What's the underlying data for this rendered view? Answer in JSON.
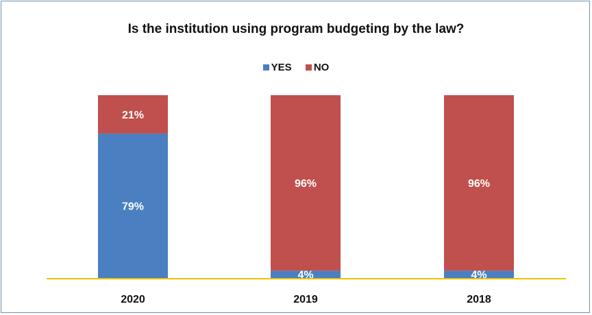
{
  "chart_data": {
    "type": "bar",
    "stacked": true,
    "percent": true,
    "title": "Is the institution using program budgeting by the law?",
    "categories": [
      "2020",
      "2019",
      "2018"
    ],
    "series": [
      {
        "name": "YES",
        "color": "#4a7fc1",
        "values": [
          79,
          4,
          4
        ],
        "labels": [
          "79%",
          "4%",
          "4%"
        ]
      },
      {
        "name": "NO",
        "color": "#c0504d",
        "values": [
          21,
          96,
          96
        ],
        "labels": [
          "21%",
          "96%",
          "96%"
        ]
      }
    ],
    "ylim": [
      0,
      100
    ],
    "axis_color": "#f2c200",
    "legend_position": "top",
    "grid": false
  }
}
